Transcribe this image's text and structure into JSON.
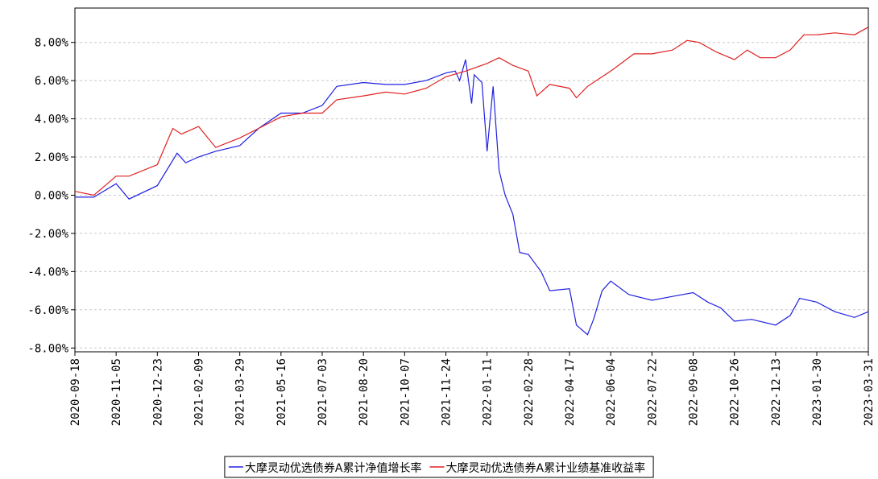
{
  "chart_data": {
    "type": "line",
    "xlim": [
      "2020-09-18",
      "2023-03-31"
    ],
    "xticks": [
      "2020-09-18",
      "2020-11-05",
      "2020-12-23",
      "2021-02-09",
      "2021-03-29",
      "2021-05-16",
      "2021-07-03",
      "2021-08-20",
      "2021-10-07",
      "2021-11-24",
      "2022-01-11",
      "2022-02-28",
      "2022-04-17",
      "2022-06-04",
      "2022-07-22",
      "2022-09-08",
      "2022-10-26",
      "2022-12-13",
      "2023-01-30",
      "2023-03-31"
    ],
    "ylim": [
      -8.2,
      9.8
    ],
    "yticks": [
      {
        "value": -8,
        "label": "-8.00%"
      },
      {
        "value": -6,
        "label": "-6.00%"
      },
      {
        "value": -4,
        "label": "-4.00%"
      },
      {
        "value": -2,
        "label": "-2.00%"
      },
      {
        "value": 0,
        "label": "0.00%"
      },
      {
        "value": 2,
        "label": "2.00%"
      },
      {
        "value": 4,
        "label": "4.00%"
      },
      {
        "value": 6,
        "label": "6.00%"
      },
      {
        "value": 8,
        "label": "8.00%"
      }
    ],
    "grid": true,
    "legend": "bottom",
    "series": [
      {
        "name": "大摩灵动优选债券A累计净值增长率",
        "color": "#2020e0",
        "x": [
          "2020-09-18",
          "2020-10-10",
          "2020-11-05",
          "2020-11-20",
          "2020-12-23",
          "2021-01-15",
          "2021-01-25",
          "2021-02-09",
          "2021-03-01",
          "2021-03-29",
          "2021-04-20",
          "2021-05-16",
          "2021-06-10",
          "2021-07-03",
          "2021-07-20",
          "2021-08-20",
          "2021-09-15",
          "2021-10-07",
          "2021-11-01",
          "2021-11-24",
          "2021-12-05",
          "2021-12-10",
          "2021-12-17",
          "2021-12-24",
          "2021-12-27",
          "2022-01-05",
          "2022-01-11",
          "2022-01-18",
          "2022-01-25",
          "2022-02-01",
          "2022-02-10",
          "2022-02-18",
          "2022-02-28",
          "2022-03-15",
          "2022-03-25",
          "2022-04-17",
          "2022-04-25",
          "2022-05-08",
          "2022-05-15",
          "2022-05-25",
          "2022-06-04",
          "2022-06-25",
          "2022-07-22",
          "2022-08-15",
          "2022-09-08",
          "2022-09-25",
          "2022-10-10",
          "2022-10-26",
          "2022-11-15",
          "2022-12-13",
          "2022-12-30",
          "2023-01-10",
          "2023-01-30",
          "2023-02-20",
          "2023-03-15",
          "2023-03-31"
        ],
        "values": [
          -0.1,
          -0.1,
          0.6,
          -0.2,
          0.5,
          2.2,
          1.7,
          2.0,
          2.3,
          2.6,
          3.5,
          4.3,
          4.3,
          4.7,
          5.7,
          5.9,
          5.8,
          5.8,
          6.0,
          6.4,
          6.5,
          6.0,
          7.1,
          4.8,
          6.3,
          5.9,
          2.3,
          5.7,
          1.3,
          0.0,
          -1.0,
          -3.0,
          -3.1,
          -4.0,
          -5.0,
          -4.9,
          -6.8,
          -7.3,
          -6.5,
          -5.0,
          -4.5,
          -5.2,
          -5.5,
          -5.3,
          -5.1,
          -5.6,
          -5.9,
          -6.6,
          -6.5,
          -6.8,
          -6.3,
          -5.4,
          -5.6,
          -6.1,
          -6.4,
          -6.1
        ]
      },
      {
        "name": "大摩灵动优选债券A累计业绩基准收益率",
        "color": "#e02020",
        "x": [
          "2020-09-18",
          "2020-10-10",
          "2020-11-05",
          "2020-11-20",
          "2020-12-23",
          "2021-01-10",
          "2021-01-20",
          "2021-02-09",
          "2021-03-01",
          "2021-03-29",
          "2021-04-20",
          "2021-05-16",
          "2021-06-10",
          "2021-07-03",
          "2021-07-20",
          "2021-08-20",
          "2021-09-15",
          "2021-10-07",
          "2021-11-01",
          "2021-11-24",
          "2021-12-17",
          "2022-01-11",
          "2022-01-25",
          "2022-02-10",
          "2022-02-28",
          "2022-03-10",
          "2022-03-25",
          "2022-04-17",
          "2022-04-25",
          "2022-05-08",
          "2022-06-04",
          "2022-07-01",
          "2022-07-22",
          "2022-08-15",
          "2022-09-01",
          "2022-09-15",
          "2022-10-05",
          "2022-10-26",
          "2022-11-10",
          "2022-11-25",
          "2022-12-13",
          "2022-12-30",
          "2023-01-15",
          "2023-01-30",
          "2023-02-20",
          "2023-03-15",
          "2023-03-31"
        ],
        "values": [
          0.2,
          0.0,
          1.0,
          1.0,
          1.6,
          3.5,
          3.2,
          3.6,
          2.5,
          3.0,
          3.5,
          4.1,
          4.3,
          4.3,
          5.0,
          5.2,
          5.4,
          5.3,
          5.6,
          6.2,
          6.5,
          6.9,
          7.2,
          6.8,
          6.5,
          5.2,
          5.8,
          5.6,
          5.1,
          5.7,
          6.5,
          7.4,
          7.4,
          7.6,
          8.1,
          8.0,
          7.5,
          7.1,
          7.6,
          7.2,
          7.2,
          7.6,
          8.4,
          8.4,
          8.5,
          8.4,
          8.8
        ]
      }
    ]
  }
}
